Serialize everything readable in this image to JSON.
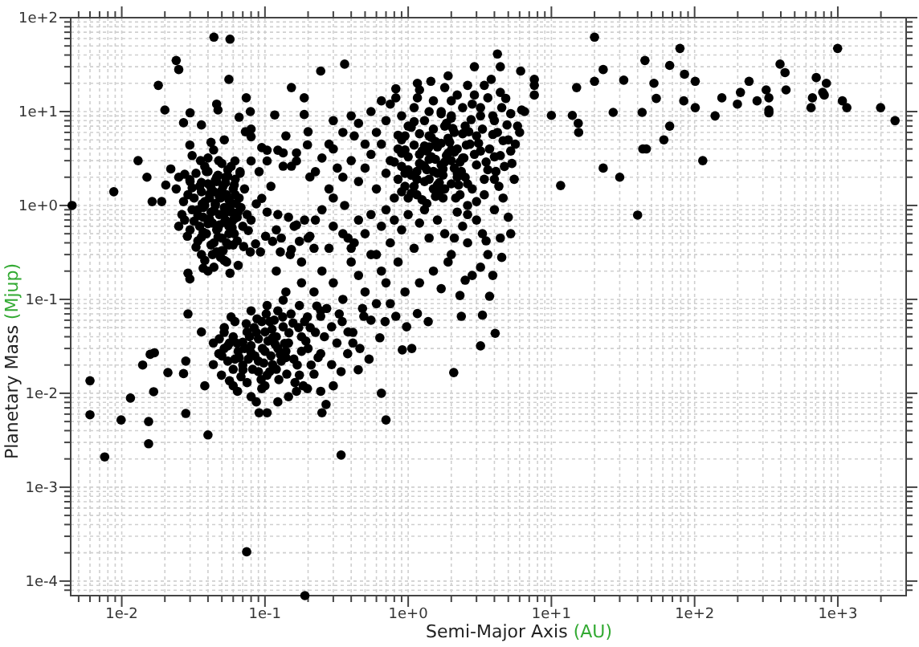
{
  "chart_data": {
    "type": "scatter",
    "xlabel": "Semi-Major Axis (AU)",
    "ylabel": "Planetary Mass (Mjup)",
    "color": "#000000",
    "marker": "circle",
    "log": "xy",
    "grid": true,
    "xlim": [
      0.0044,
      3000
    ],
    "ylim": [
      7e-05,
      100
    ],
    "xticks": [
      {
        "value": 0.005,
        "label": null
      },
      {
        "value": 0.006,
        "label": null
      },
      {
        "value": 0.007,
        "label": null
      },
      {
        "value": 0.008,
        "label": null
      },
      {
        "value": 0.009,
        "label": null
      },
      {
        "value": 0.01,
        "label": "1e-2"
      },
      {
        "value": 0.02,
        "label": null
      },
      {
        "value": 0.03,
        "label": null
      },
      {
        "value": 0.04,
        "label": null
      },
      {
        "value": 0.05,
        "label": null
      },
      {
        "value": 0.06,
        "label": null
      },
      {
        "value": 0.07,
        "label": null
      },
      {
        "value": 0.08,
        "label": null
      },
      {
        "value": 0.09,
        "label": null
      },
      {
        "value": 0.1,
        "label": "1e-1"
      },
      {
        "value": 0.2,
        "label": null
      },
      {
        "value": 0.3,
        "label": null
      },
      {
        "value": 0.4,
        "label": null
      },
      {
        "value": 0.5,
        "label": null
      },
      {
        "value": 0.6,
        "label": null
      },
      {
        "value": 0.7,
        "label": null
      },
      {
        "value": 0.8,
        "label": null
      },
      {
        "value": 0.9,
        "label": null
      },
      {
        "value": 1,
        "label": "1e+0"
      },
      {
        "value": 2,
        "label": null
      },
      {
        "value": 3,
        "label": null
      },
      {
        "value": 4,
        "label": null
      },
      {
        "value": 5,
        "label": null
      },
      {
        "value": 6,
        "label": null
      },
      {
        "value": 7,
        "label": null
      },
      {
        "value": 8,
        "label": null
      },
      {
        "value": 9,
        "label": null
      },
      {
        "value": 10,
        "label": "1e+1"
      },
      {
        "value": 20,
        "label": null
      },
      {
        "value": 30,
        "label": null
      },
      {
        "value": 40,
        "label": null
      },
      {
        "value": 50,
        "label": null
      },
      {
        "value": 60,
        "label": null
      },
      {
        "value": 70,
        "label": null
      },
      {
        "value": 80,
        "label": null
      },
      {
        "value": 90,
        "label": null
      },
      {
        "value": 100,
        "label": "1e+2"
      },
      {
        "value": 200,
        "label": null
      },
      {
        "value": 300,
        "label": null
      },
      {
        "value": 400,
        "label": null
      },
      {
        "value": 500,
        "label": null
      },
      {
        "value": 600,
        "label": null
      },
      {
        "value": 700,
        "label": null
      },
      {
        "value": 800,
        "label": null
      },
      {
        "value": 900,
        "label": null
      },
      {
        "value": 1000,
        "label": "1e+3"
      },
      {
        "value": 2000,
        "label": null
      }
    ],
    "yticks": [
      {
        "value": 8e-05,
        "label": null
      },
      {
        "value": 9e-05,
        "label": null
      },
      {
        "value": 0.0001,
        "label": "1e-4"
      },
      {
        "value": 0.0002,
        "label": null
      },
      {
        "value": 0.0003,
        "label": null
      },
      {
        "value": 0.0004,
        "label": null
      },
      {
        "value": 0.0005,
        "label": null
      },
      {
        "value": 0.0006,
        "label": null
      },
      {
        "value": 0.0007,
        "label": null
      },
      {
        "value": 0.0008,
        "label": null
      },
      {
        "value": 0.0009,
        "label": null
      },
      {
        "value": 0.001,
        "label": "1e-3"
      },
      {
        "value": 0.002,
        "label": null
      },
      {
        "value": 0.003,
        "label": null
      },
      {
        "value": 0.004,
        "label": null
      },
      {
        "value": 0.005,
        "label": null
      },
      {
        "value": 0.006,
        "label": null
      },
      {
        "value": 0.007,
        "label": null
      },
      {
        "value": 0.008,
        "label": null
      },
      {
        "value": 0.009,
        "label": null
      },
      {
        "value": 0.01,
        "label": "1e-2"
      },
      {
        "value": 0.02,
        "label": null
      },
      {
        "value": 0.03,
        "label": null
      },
      {
        "value": 0.04,
        "label": null
      },
      {
        "value": 0.05,
        "label": null
      },
      {
        "value": 0.06,
        "label": null
      },
      {
        "value": 0.07,
        "label": null
      },
      {
        "value": 0.08,
        "label": null
      },
      {
        "value": 0.09,
        "label": null
      },
      {
        "value": 0.1,
        "label": "1e-1"
      },
      {
        "value": 0.2,
        "label": null
      },
      {
        "value": 0.3,
        "label": null
      },
      {
        "value": 0.4,
        "label": null
      },
      {
        "value": 0.5,
        "label": null
      },
      {
        "value": 0.6,
        "label": null
      },
      {
        "value": 0.7,
        "label": null
      },
      {
        "value": 0.8,
        "label": null
      },
      {
        "value": 0.9,
        "label": null
      },
      {
        "value": 1,
        "label": "1e+0"
      },
      {
        "value": 2,
        "label": null
      },
      {
        "value": 3,
        "label": null
      },
      {
        "value": 4,
        "label": null
      },
      {
        "value": 5,
        "label": null
      },
      {
        "value": 6,
        "label": null
      },
      {
        "value": 7,
        "label": null
      },
      {
        "value": 8,
        "label": null
      },
      {
        "value": 9,
        "label": null
      },
      {
        "value": 10,
        "label": "1e+1"
      },
      {
        "value": 20,
        "label": null
      },
      {
        "value": 30,
        "label": null
      },
      {
        "value": 40,
        "label": null
      },
      {
        "value": 50,
        "label": null
      },
      {
        "value": 60,
        "label": null
      },
      {
        "value": 70,
        "label": null
      },
      {
        "value": 80,
        "label": null
      },
      {
        "value": 90,
        "label": null
      },
      {
        "value": 100,
        "label": "1e+2"
      }
    ],
    "x": [
      0.0045,
      0.0088,
      0.013,
      0.015,
      0.018,
      0.02,
      0.024,
      0.025,
      0.044,
      0.057,
      0.056,
      0.03,
      0.027,
      0.036,
      0.046,
      0.047,
      0.066,
      0.074,
      0.08,
      0.079,
      0.117,
      0.153,
      0.188,
      0.188,
      0.2,
      0.245,
      0.36,
      4.2,
      4.4,
      2.9,
      6.1,
      7.6,
      7.6,
      7.6,
      1.9,
      1.16,
      1.44,
      0.82,
      0.82,
      1.16,
      10,
      14,
      15,
      15.5,
      23,
      20,
      20,
      23,
      11.6,
      32,
      27,
      15.4,
      30,
      40,
      43,
      45,
      52,
      54,
      43.5,
      46,
      61,
      67,
      67,
      79,
      85,
      84,
      101,
      101,
      114,
      139,
      155,
      199,
      209,
      240,
      273,
      316,
      330,
      330,
      330,
      395,
      428,
      435,
      650,
      665,
      707,
      784,
      804,
      832,
      997,
      1076,
      1156,
      1990,
      2510,
      0.006,
      0.006,
      0.0076,
      0.0099,
      0.0115,
      0.014,
      0.0154,
      0.0154,
      0.0158,
      0.0169,
      0.0167,
      0.021,
      0.027,
      0.028,
      0.028,
      0.029,
      0.04,
      0.038,
      0.036,
      0.0745,
      0.19,
      0.34,
      0.7,
      0.91,
      0.65,
      2.08,
      2.35,
      3.3,
      4.05,
      3.2,
      3.7,
      0.25,
      0.0436,
      0.0476,
      0.0519,
      0.0565,
      0.0617,
      0.0436,
      0.0497,
      0.0565,
      0.0643,
      0.0702,
      0.0765,
      0.08,
      0.087,
      0.095,
      0.08,
      0.087,
      0.095,
      0.1035,
      0.113,
      0.123,
      0.113,
      0.108,
      0.123,
      0.134,
      0.146,
      0.159,
      0.174,
      0.166,
      0.146,
      0.123,
      0.1035,
      0.091,
      0.189,
      0.225,
      0.245,
      0.292,
      0.346,
      0.411,
      0.49,
      0.245,
      0.292,
      0.318,
      0.378,
      0.448,
      0.533,
      0.245,
      0.267,
      0.198,
      0.411,
      0.634,
      0.69,
      0.82,
      0.975,
      1.16,
      1.38,
      1.06,
      0.245,
      0.174,
      0.134,
      0.1035,
      0.08,
      0.0617,
      0.0519,
      0.06,
      0.065,
      0.07,
      0.075,
      0.085,
      0.09,
      0.1,
      0.1,
      0.11,
      0.12,
      0.13,
      0.07,
      0.055,
      0.09,
      0.14,
      0.2,
      0.18,
      0.21,
      0.06,
      0.075,
      0.1,
      0.048,
      0.12,
      0.15,
      0.18,
      0.22,
      0.25,
      0.3,
      0.35,
      0.4,
      0.45,
      0.5,
      0.55,
      0.6,
      0.28,
      0.2,
      0.14,
      0.16,
      0.13,
      0.35,
      0.42,
      0.65,
      0.7,
      0.75,
      0.27,
      0.33,
      0.48,
      0.55,
      0.23,
      0.6,
      0.7,
      0.75,
      0.9,
      1.0,
      1.1,
      1.3,
      1.5,
      1.7,
      2.0,
      2.2,
      2.5,
      2.8,
      3.2,
      3.6,
      4.0,
      4.5,
      5.2,
      5.8,
      6.5,
      1.2,
      1.8,
      2.6,
      3.4,
      0.95,
      1.4,
      2.1,
      3.0,
      4.2,
      5.0,
      0.55,
      0.65,
      3.8,
      0.5,
      4.8,
      6.2,
      0.5,
      0.55,
      0.6,
      0.65,
      0.7,
      0.75,
      0.8,
      0.85,
      0.9,
      0.95,
      1.0,
      1.05,
      1.1,
      1.15,
      1.2,
      1.25,
      1.3,
      1.35,
      1.4,
      1.5,
      1.55,
      1.6,
      1.7,
      1.75,
      1.8,
      1.9,
      2.0,
      2.1,
      2.2,
      2.3,
      2.4,
      2.5,
      2.7,
      2.8,
      3.0,
      3.2,
      3.4,
      3.6,
      4.0,
      4.3,
      4.7,
      5.2,
      5.5,
      3.0,
      2.6,
      0.45,
      0.4,
      0.35,
      0.3,
      0.42,
      0.3,
      0.5,
      0.55,
      0.6,
      0.65,
      0.7,
      0.75,
      0.8,
      0.85,
      0.9,
      1.0,
      1.1,
      1.2,
      1.3,
      1.4,
      1.5,
      1.6,
      1.8,
      2.0,
      2.2,
      2.4,
      2.6,
      2.8,
      3.0,
      3.3,
      3.6,
      4.0,
      4.4,
      1.2,
      0.95,
      1.7,
      2.3,
      0.45,
      0.4,
      0.85,
      0.9,
      1.0,
      1.1,
      1.2,
      1.3,
      1.4,
      1.5,
      1.6,
      1.7,
      1.8,
      1.9,
      2.0,
      2.2,
      2.4,
      0.95,
      1.05,
      1.25,
      1.45,
      1.65,
      1.85,
      2.1,
      2.3,
      2.6,
      2.9,
      1.15,
      1.35,
      1.55,
      1.75,
      2.0,
      0.0163,
      0.019,
      0.022,
      0.025,
      0.0203,
      0.0275,
      0.0299,
      0.031,
      0.0263,
      0.0275,
      0.0287,
      0.0299,
      0.031,
      0.0355,
      0.036,
      0.0365,
      0.042,
      0.0438,
      0.0475,
      0.052,
      0.037,
      0.04,
      0.046,
      0.052,
      0.057,
      0.065,
      0.071,
      0.079,
      0.093,
      0.086,
      0.101,
      0.0765,
      0.08,
      0.087,
      0.095,
      0.1035,
      0.0617,
      0.067,
      0.08,
      0.091,
      0.1035,
      0.123,
      0.134,
      0.153,
      0.166,
      0.123,
      0.146,
      0.166,
      0.189,
      0.225,
      0.206,
      0.174,
      0.153,
      0.128,
      0.113,
      0.073,
      0.08,
      0.095,
      0.1035,
      0.134,
      0.166,
      0.198,
      0.225,
      0.206,
      0.029,
      0.0299,
      0.032,
      0.034,
      0.035,
      0.036,
      0.037,
      0.038,
      0.039,
      0.04,
      0.041,
      0.042,
      0.043,
      0.044,
      0.045,
      0.046,
      0.047,
      0.048,
      0.049,
      0.05,
      0.051,
      0.052,
      0.053,
      0.054,
      0.055,
      0.056,
      0.057,
      0.058,
      0.06,
      0.061,
      0.062,
      0.064,
      0.066,
      0.068,
      0.07,
      0.072,
      0.075,
      0.033,
      0.038,
      0.044,
      0.05,
      0.056,
      0.034,
      0.031,
      0.029,
      0.027,
      0.025,
      0.024,
      0.046,
      0.053,
      0.04,
      0.059,
      0.063,
      0.048,
      0.042,
      0.036,
      0.03,
      0.11,
      0.25,
      0.28,
      0.3,
      0.32,
      0.36,
      0.38,
      0.25,
      0.28,
      0.35,
      0.45,
      0.4,
      0.3,
      0.14,
      0.12,
      0.22,
      0.18,
      0.033,
      0.037,
      0.041,
      0.045,
      0.05,
      0.055,
      0.06,
      0.034,
      0.038,
      0.046,
      0.051,
      0.056,
      0.061,
      0.035,
      0.039,
      0.043,
      0.047,
      0.052,
      0.057,
      0.062,
      0.036,
      0.04,
      0.044,
      0.048,
      0.053,
      0.058,
      0.064,
      0.032,
      0.037,
      0.041,
      0.045,
      0.049,
      0.054,
      0.059,
      0.065,
      0.038,
      0.042,
      0.047,
      0.052,
      0.056,
      0.061,
      0.067,
      0.04,
      0.05,
      0.044,
      0.054,
      0.03,
      0.05,
      0.055,
      0.06,
      0.066,
      0.072,
      0.078,
      0.084,
      0.09,
      0.096,
      0.105,
      0.112,
      0.12,
      0.128,
      0.137,
      0.147,
      0.157,
      0.168,
      0.18,
      0.193,
      0.207,
      0.22,
      0.235,
      0.052,
      0.058,
      0.068,
      0.074,
      0.082,
      0.088,
      0.094,
      0.102,
      0.108,
      0.116,
      0.125,
      0.133,
      0.142,
      0.152,
      0.162,
      0.172,
      0.185,
      0.198,
      0.064,
      0.08,
      0.098,
      0.118,
      0.14,
      0.3,
      0.38,
      0.46,
      0.26,
      0.34,
      1.05,
      1.15,
      1.25,
      1.35,
      1.45,
      1.55,
      1.65,
      1.75,
      1.85,
      1.95,
      2.05,
      2.15,
      2.25,
      2.35,
      2.45,
      2.55,
      2.65,
      2.75,
      1.1,
      1.2,
      1.3,
      1.4,
      1.5,
      1.6,
      1.7,
      1.8,
      2.0,
      2.2,
      0.8,
      0.85,
      0.9,
      0.95,
      1.0,
      3.1,
      3.3,
      3.5,
      3.7,
      3.9,
      4.1,
      4.4,
      4.6,
      4.9,
      5.3,
      5.6,
      6.0,
      3.2,
      3.9,
      4.4,
      2.9,
      2.4,
      2.0,
      1.4,
      0.9,
      2.6,
      3.4,
      4.0,
      4.6,
      5.0,
      1.9,
      2.5,
      3.2,
      3.9,
      4.5,
      2.1,
      3.5,
      5.2
    ],
    "values": [
      1.0,
      1.4,
      3.0,
      2.0,
      19,
      10.4,
      35,
      28,
      62,
      59,
      22,
      9.7,
      7.6,
      7.2,
      12,
      10.4,
      8.7,
      14,
      6.5,
      10,
      9.2,
      18,
      14,
      9.3,
      6.1,
      27,
      32,
      41,
      30,
      30,
      27,
      22,
      19,
      15,
      24,
      20,
      21,
      17.5,
      14,
      14,
      9.1,
      9.1,
      18,
      6,
      28,
      62,
      21,
      2.5,
      1.63,
      21.6,
      9.8,
      7.5,
      2.0,
      0.79,
      9.8,
      35,
      20,
      13.8,
      4.0,
      4.0,
      5.0,
      7.0,
      31,
      47,
      25,
      13,
      21,
      11,
      3.0,
      9.0,
      14,
      12,
      16,
      21,
      13,
      17,
      14,
      10.4,
      9.7,
      32,
      26,
      17,
      11,
      14,
      23,
      16,
      15,
      20,
      47,
      13,
      11,
      11,
      8.0,
      0.0136,
      0.0059,
      0.0021,
      0.0052,
      0.0089,
      0.02,
      0.005,
      0.0029,
      0.026,
      0.027,
      0.0104,
      0.0166,
      0.0162,
      0.0061,
      0.022,
      0.07,
      0.0036,
      0.012,
      0.045,
      0.000205,
      7e-05,
      0.0022,
      0.0052,
      0.029,
      0.01,
      0.0166,
      0.066,
      0.068,
      0.0435,
      0.032,
      0.108,
      0.0062,
      0.0343,
      0.0264,
      0.03,
      0.0343,
      0.0231,
      0.0202,
      0.0156,
      0.0136,
      0.0105,
      0.0178,
      0.0231,
      0.0321,
      0.0445,
      0.058,
      0.0092,
      0.0081,
      0.0112,
      0.0156,
      0.0202,
      0.03,
      0.039,
      0.058,
      0.0755,
      0.051,
      0.0343,
      0.0231,
      0.0156,
      0.0105,
      0.0092,
      0.0081,
      0.0062,
      0.0062,
      0.058,
      0.0445,
      0.066,
      0.051,
      0.058,
      0.0445,
      0.066,
      0.0264,
      0.0202,
      0.0343,
      0.0264,
      0.0178,
      0.0231,
      0.0105,
      0.0076,
      0.0112,
      0.0343,
      0.039,
      0.058,
      0.066,
      0.051,
      0.0706,
      0.058,
      0.03,
      0.0755,
      0.086,
      0.098,
      0.086,
      0.0755,
      0.058,
      0.0445,
      0.04,
      0.028,
      0.035,
      0.045,
      0.025,
      0.038,
      0.028,
      0.045,
      0.025,
      0.04,
      0.022,
      0.02,
      0.022,
      0.017,
      0.028,
      0.03,
      0.04,
      0.02,
      0.012,
      0.013,
      0.012,
      0.038,
      0.2,
      0.3,
      0.15,
      0.12,
      0.2,
      0.15,
      0.1,
      0.25,
      0.18,
      0.12,
      0.3,
      0.09,
      0.35,
      0.45,
      0.12,
      0.6,
      0.45,
      0.5,
      0.4,
      0.2,
      0.15,
      0.09,
      0.08,
      0.07,
      0.08,
      0.06,
      0.085,
      6,
      8,
      12,
      9,
      7,
      11,
      8,
      13,
      10,
      9,
      15,
      7,
      12,
      9,
      14,
      8,
      11,
      9.5,
      7,
      10,
      17,
      18,
      19,
      19,
      5.5,
      5.5,
      6,
      5.5,
      6,
      5,
      10,
      13,
      22,
      4.5,
      13.8,
      10.4,
      2.5,
      3.5,
      1.5,
      4.5,
      2.2,
      3,
      1.2,
      4,
      2.6,
      1.6,
      3.3,
      2.1,
      4.4,
      1.3,
      2.8,
      3.8,
      1.8,
      2.4,
      4.2,
      1.5,
      3.1,
      2.2,
      4.6,
      1.2,
      2.9,
      3.6,
      1.7,
      2.5,
      4.0,
      1.3,
      3.2,
      2.0,
      4.5,
      1.5,
      2.7,
      3.8,
      1.9,
      2.4,
      3.3,
      1.6,
      2.6,
      3.8,
      1.9,
      1.1,
      1.0,
      1.8,
      3.0,
      2.0,
      1.2,
      5.5,
      4,
      0.5,
      0.8,
      0.3,
      0.6,
      0.9,
      0.4,
      0.7,
      0.25,
      0.55,
      0.8,
      0.35,
      0.65,
      0.9,
      0.45,
      0.2,
      0.7,
      0.5,
      0.3,
      0.85,
      0.6,
      0.4,
      0.18,
      0.7,
      0.5,
      0.3,
      0.9,
      0.45,
      0.15,
      0.12,
      0.13,
      0.11,
      0.7,
      0.35,
      1.9,
      5,
      2.4,
      1.6,
      3.5,
      2.6,
      1.9,
      6.5,
      4.2,
      2.7,
      1.5,
      5.2,
      3.0,
      2.2,
      5.8,
      3.9,
      6.8,
      1.15,
      3.3,
      1.4,
      7.5,
      3.7,
      2.9,
      1.7,
      3.5,
      2.3,
      1.05,
      4.8,
      2.1,
      8.5,
      1.1,
      1.1,
      2.45,
      2.0,
      1.65,
      2.15,
      1.88,
      1.54,
      0.8,
      0.7,
      0.47,
      4.4,
      3.4,
      3.0,
      1.76,
      1.04,
      4.7,
      3.9,
      3.0,
      5.0,
      0.215,
      0.2,
      0.32,
      0.26,
      0.19,
      0.23,
      0.365,
      0.32,
      0.32,
      0.39,
      0.47,
      0.54,
      0.7,
      1.04,
      1.19,
      0.85,
      2.98,
      2.29,
      2.98,
      2.29,
      2.98,
      3.88,
      2.62,
      2.62,
      2.98,
      0.8,
      0.75,
      0.62,
      0.7,
      0.7,
      0.47,
      0.415,
      0.34,
      0.32,
      0.415,
      6.1,
      5.4,
      4.13,
      3.88,
      3.63,
      3.63,
      4.42,
      2.29,
      2.01,
      0.19,
      0.165,
      1.2,
      0.9,
      0.6,
      1.4,
      0.75,
      1.0,
      0.5,
      1.7,
      1.2,
      0.85,
      0.65,
      1.4,
      1.0,
      0.55,
      2.1,
      0.8,
      1.2,
      0.45,
      1.6,
      0.95,
      0.7,
      1.3,
      2.4,
      0.6,
      1.1,
      0.85,
      1.5,
      0.5,
      1.9,
      0.75,
      1.2,
      0.95,
      0.6,
      1.5,
      0.8,
      2.2,
      2.6,
      0.4,
      0.33,
      0.38,
      0.42,
      0.9,
      1.3,
      1.1,
      0.6,
      1.5,
      1.8,
      2.0,
      2.3,
      0.68,
      1.05,
      0.62,
      1.55,
      0.3,
      0.55,
      1.6,
      0.9,
      1.5,
      0.6,
      2.5,
      1.0,
      0.45,
      3.2,
      4.5,
      6,
      7.5,
      9,
      8,
      5.5,
      0.55,
      0.35,
      0.25,
      0.36,
      0.52,
      0.72,
      1.05,
      1.45,
      2.05,
      0.38,
      0.78,
      1.1,
      2.0,
      0.33,
      0.5,
      0.72,
      1.6,
      2.3,
      0.3,
      0.46,
      0.66,
      0.92,
      1.3,
      0.46,
      0.64,
      0.88,
      1.25,
      1.75,
      2.6,
      0.42,
      0.68,
      0.95,
      1.32,
      1.85,
      0.28,
      0.4,
      0.58,
      0.85,
      0.26,
      0.38,
      0.57,
      0.82,
      1.15,
      1.65,
      2.2,
      3.2,
      2.8,
      0.22,
      0.25,
      1.8,
      0.025,
      0.032,
      0.018,
      0.024,
      0.03,
      0.04,
      0.05,
      0.022,
      0.03,
      0.036,
      0.048,
      0.018,
      0.026,
      0.034,
      0.044,
      0.056,
      0.02,
      0.028,
      0.036,
      0.05,
      0.016,
      0.024,
      0.05,
      0.065,
      0.015,
      0.055,
      0.018,
      0.062,
      0.014,
      0.07,
      0.017,
      0.06,
      0.014,
      0.065,
      0.016,
      0.07,
      0.013,
      0.05,
      0.012,
      0.065,
      0.034,
      0.027,
      0.021,
      0.033,
      0.024,
      0.012,
      0.045,
      0.03,
      0.04,
      0.017,
      1.35,
      1.9,
      2.7,
      3.8,
      5.3,
      1.25,
      1.75,
      2.45,
      3.4,
      4.7,
      6.6,
      1.2,
      1.65,
      2.3,
      3.2,
      4.4,
      6.1,
      8.2,
      7.8,
      5.8,
      4.3,
      3.1,
      2.3,
      1.65,
      9.5,
      7.0,
      3.9,
      2.0,
      2.9,
      5.6,
      3.6,
      2.2,
      1.2,
      4.6,
      6.5,
      2.9,
      4.0,
      5.7,
      2.3,
      3.4,
      4.9,
      7.2,
      2.8,
      4.5,
      6.0,
      11,
      9,
      16,
      15,
      11,
      13,
      10,
      1.4,
      0.8,
      1.3,
      1.9,
      1.2,
      0.75,
      0.25,
      0.16,
      0.22,
      0.18,
      0.28,
      0.45,
      0.42,
      0.5
    ]
  }
}
